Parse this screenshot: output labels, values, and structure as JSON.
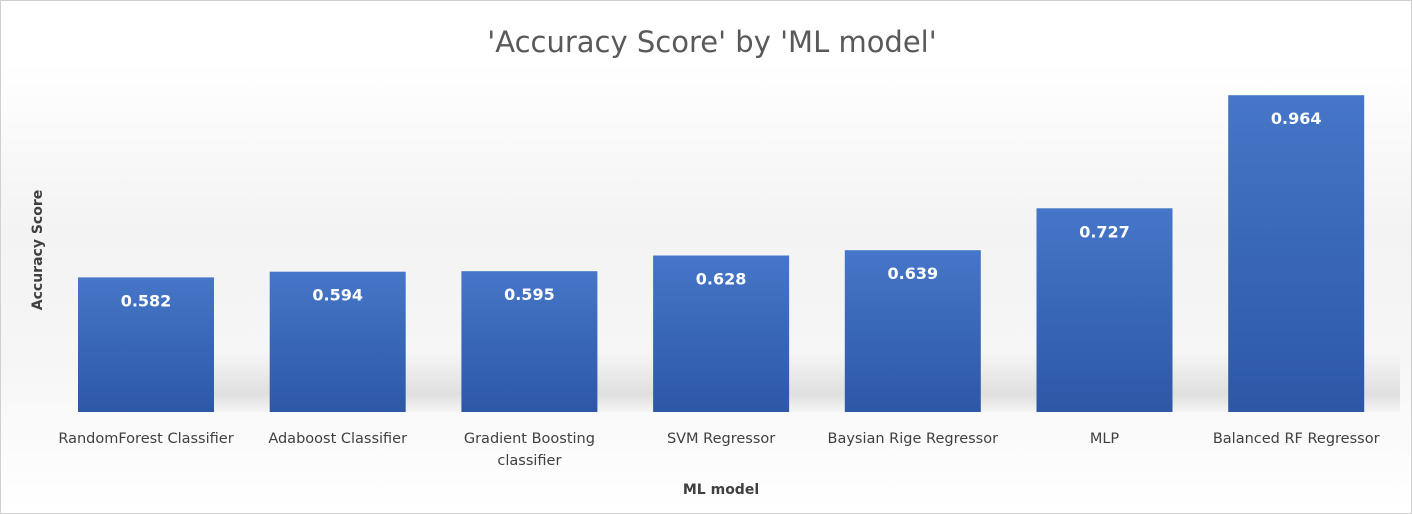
{
  "chart_data": {
    "type": "bar",
    "title": "'Accuracy Score' by 'ML model'",
    "xlabel": "ML model",
    "ylabel": "Accuracy Score",
    "categories": [
      "RandomForest Classifier",
      "Adaboost Classifier",
      "Gradient Boosting classifier",
      "SVM Regressor",
      "Baysian Rige Regressor",
      "MLP",
      "Balanced RF Regressor"
    ],
    "values": [
      0.582,
      0.594,
      0.595,
      0.628,
      0.639,
      0.727,
      0.964
    ],
    "data_labels": [
      "0.582",
      "0.594",
      "0.595",
      "0.628",
      "0.639",
      "0.727",
      "0.964"
    ],
    "ylim": [
      0.3,
      1.0
    ],
    "grid": false,
    "legend": "none",
    "colors": {
      "bar_top": "#4472c4",
      "bar_bottom": "#2e5aa8",
      "title": "#595959",
      "text": "#404040"
    }
  }
}
